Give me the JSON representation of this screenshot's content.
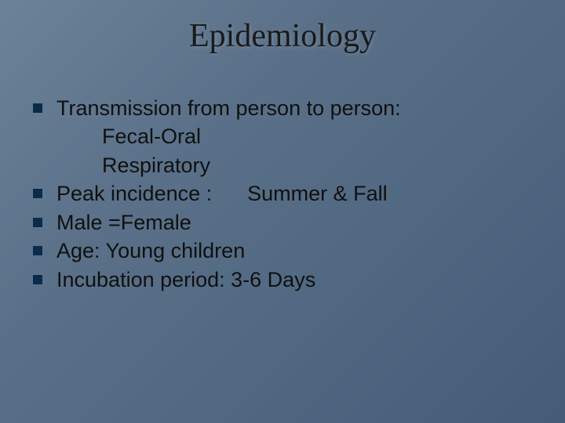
{
  "slide": {
    "title": "Epidemiology",
    "background_gradient": [
      "#6b8299",
      "#5a7088",
      "#4e6680",
      "#445c78"
    ],
    "title_color": "#1a1a1a",
    "title_fontsize": 42,
    "body_fontsize": 27,
    "body_color": "#101010",
    "bullet_color": "#0b2b4a",
    "bullet_size": 12,
    "lines": [
      {
        "bullet": true,
        "indent": false,
        "text": "Transmission from person to person:"
      },
      {
        "bullet": false,
        "indent": true,
        "text": "Fecal-Oral"
      },
      {
        "bullet": false,
        "indent": true,
        "text": "Respiratory"
      },
      {
        "bullet": true,
        "indent": false,
        "text": "Peak incidence :      Summer & Fall"
      },
      {
        "bullet": true,
        "indent": false,
        "text": "Male =Female"
      },
      {
        "bullet": true,
        "indent": false,
        "text": "Age: Young children"
      },
      {
        "bullet": true,
        "indent": false,
        "text": "Incubation period: 3-6 Days"
      }
    ]
  }
}
